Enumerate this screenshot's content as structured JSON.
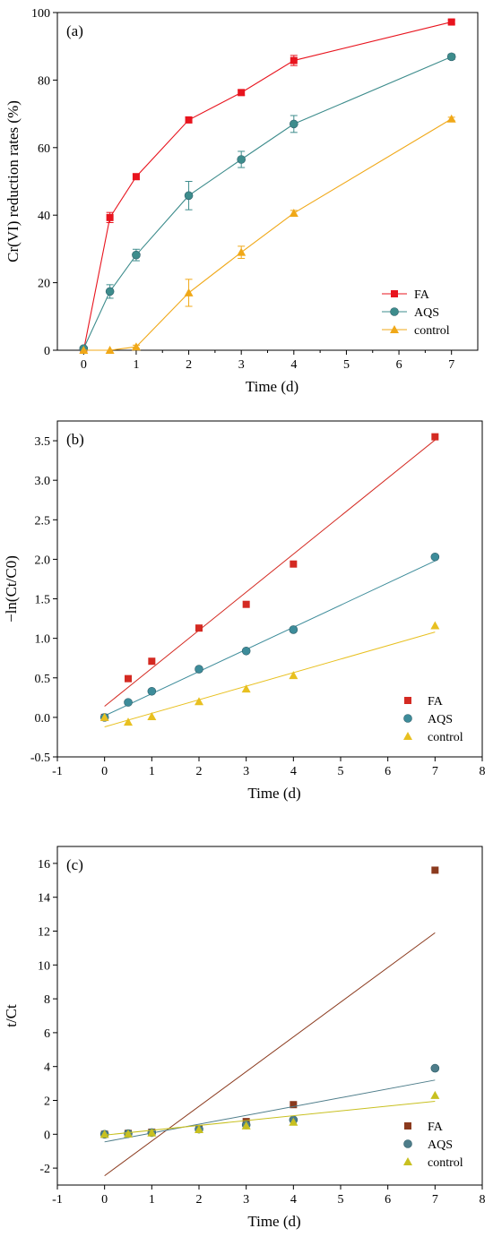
{
  "chart_data": [
    {
      "type": "line",
      "panel_label": "(a)",
      "xlabel": "Time (d)",
      "ylabel": "Cr(VI) reduction rates (%)",
      "xlim": [
        -0.5,
        7.5
      ],
      "ylim": [
        0,
        100
      ],
      "xticks": [
        0,
        1,
        2,
        3,
        4,
        5,
        6,
        7
      ],
      "yticks": [
        0,
        20,
        40,
        60,
        80,
        100
      ],
      "grid": false,
      "legend_position": "bottom-right",
      "series": [
        {
          "name": "FA",
          "color": "#e8141e",
          "marker": "square",
          "x": [
            0,
            0.5,
            1,
            2,
            3,
            4,
            7
          ],
          "values": [
            0,
            39.3,
            51.4,
            68.2,
            76.3,
            85.8,
            97.2
          ],
          "errors": [
            0,
            1.5,
            0.8,
            0.8,
            0.8,
            1.5,
            0.6
          ]
        },
        {
          "name": "AQS",
          "color": "#3d8c8c",
          "marker": "circle",
          "x": [
            0,
            0.5,
            1,
            2,
            3,
            4,
            7
          ],
          "values": [
            0.5,
            17.4,
            28.2,
            45.8,
            56.5,
            67.0,
            86.9
          ],
          "errors": [
            0.5,
            2.0,
            1.7,
            4.2,
            2.4,
            2.5,
            0.8
          ]
        },
        {
          "name": "control",
          "color": "#f0a818",
          "marker": "triangle",
          "x": [
            0,
            0.5,
            1,
            2,
            3,
            4,
            7
          ],
          "values": [
            0,
            0,
            1.0,
            17.0,
            29.0,
            40.6,
            68.5
          ],
          "errors": [
            0,
            0,
            0.5,
            4.0,
            1.8,
            0.8,
            0.5
          ]
        }
      ]
    },
    {
      "type": "scatter",
      "panel_label": "(b)",
      "xlabel": "Time (d)",
      "ylabel": "−ln(Ct/C0)",
      "xlim": [
        -1,
        8
      ],
      "ylim": [
        -0.5,
        3.75
      ],
      "xticks": [
        -1,
        0,
        1,
        2,
        3,
        4,
        5,
        6,
        7,
        8
      ],
      "yticks": [
        -0.5,
        0.0,
        0.5,
        1.0,
        1.5,
        2.0,
        2.5,
        3.0,
        3.5
      ],
      "ytick_labels": [
        "-0.5",
        "0.0",
        "0.5",
        "1.0",
        "1.5",
        "2.0",
        "2.5",
        "3.0",
        "3.5"
      ],
      "grid": false,
      "legend_position": "bottom-right",
      "series": [
        {
          "name": "FA",
          "color": "#d42a22",
          "marker": "square",
          "x": [
            0,
            0.5,
            1,
            2,
            3,
            4,
            7
          ],
          "values": [
            0,
            0.49,
            0.71,
            1.13,
            1.43,
            1.94,
            3.55
          ],
          "fit": {
            "x": [
              0,
              7
            ],
            "y": [
              0.14,
              3.51
            ]
          }
        },
        {
          "name": "AQS",
          "color": "#3d8c9a",
          "marker": "circle",
          "x": [
            0,
            0.5,
            1,
            2,
            3,
            4,
            7
          ],
          "values": [
            0,
            0.19,
            0.33,
            0.61,
            0.84,
            1.11,
            2.03
          ],
          "fit": {
            "x": [
              0,
              7
            ],
            "y": [
              0.02,
              1.98
            ]
          }
        },
        {
          "name": "control",
          "color": "#e8c020",
          "marker": "triangle",
          "x": [
            0,
            0.5,
            1,
            2,
            3,
            4,
            7
          ],
          "values": [
            0,
            -0.06,
            0.01,
            0.2,
            0.36,
            0.53,
            1.16
          ],
          "fit": {
            "x": [
              0,
              7
            ],
            "y": [
              -0.12,
              1.08
            ]
          }
        }
      ]
    },
    {
      "type": "scatter",
      "panel_label": "(c)",
      "xlabel": "Time (d)",
      "ylabel": "t/Ct",
      "xlim": [
        -1,
        8
      ],
      "ylim": [
        -3,
        17
      ],
      "xticks": [
        -1,
        0,
        1,
        2,
        3,
        4,
        5,
        6,
        7,
        8
      ],
      "yticks": [
        -2,
        0,
        2,
        4,
        6,
        8,
        10,
        12,
        14,
        16
      ],
      "grid": false,
      "legend_position": "bottom-right",
      "series": [
        {
          "name": "FA",
          "color": "#8b3a1e",
          "marker": "square",
          "x": [
            0,
            0.5,
            1,
            2,
            3,
            4,
            7
          ],
          "values": [
            0,
            0.05,
            0.12,
            0.33,
            0.75,
            1.75,
            15.6
          ],
          "fit": {
            "x": [
              0,
              7
            ],
            "y": [
              -2.45,
              11.9
            ]
          }
        },
        {
          "name": "AQS",
          "color": "#4e7d8a",
          "marker": "circle",
          "x": [
            0,
            0.5,
            1,
            2,
            3,
            4,
            7
          ],
          "values": [
            0,
            0.04,
            0.1,
            0.3,
            0.55,
            0.85,
            3.9
          ],
          "fit": {
            "x": [
              0,
              7
            ],
            "y": [
              -0.45,
              3.2
            ]
          }
        },
        {
          "name": "control",
          "color": "#c8c020",
          "marker": "triangle",
          "x": [
            0,
            0.5,
            1,
            2,
            3,
            4,
            7
          ],
          "values": [
            0,
            0.02,
            0.08,
            0.28,
            0.5,
            0.72,
            2.3
          ],
          "fit": {
            "x": [
              0,
              7
            ],
            "y": [
              -0.05,
              1.95
            ]
          }
        }
      ]
    }
  ]
}
